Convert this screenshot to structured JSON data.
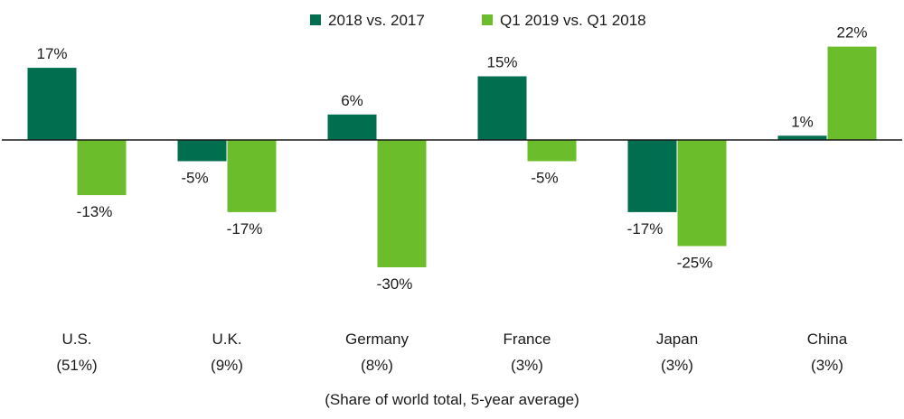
{
  "chart_data": {
    "type": "bar",
    "categories": [
      "U.S.",
      "U.K.",
      "Germany",
      "France",
      "Japan",
      "China"
    ],
    "category_shares": [
      "(51%)",
      "(9%)",
      "(8%)",
      "(3%)",
      "(3%)",
      "(3%)"
    ],
    "series": [
      {
        "name": "2018 vs. 2017",
        "color": "#006e4f",
        "values": [
          17,
          -5,
          6,
          15,
          -17,
          1
        ]
      },
      {
        "name": "Q1 2019 vs. Q1 2018",
        "color": "#6cbd2c",
        "values": [
          -13,
          -17,
          -30,
          -5,
          -25,
          22
        ]
      }
    ],
    "value_suffix": "%",
    "xlabel": "(Share of world total, 5-year average)",
    "ylabel": "",
    "ylim": [
      -40,
      30
    ],
    "grid": false,
    "legend_position": "top-center"
  }
}
